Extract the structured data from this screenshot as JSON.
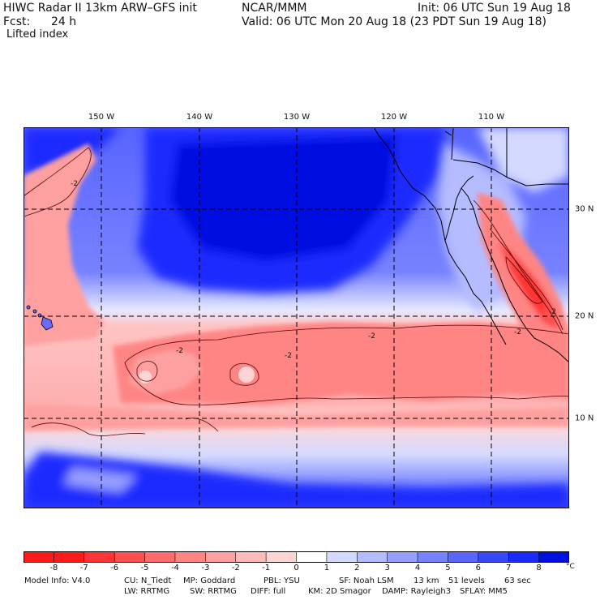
{
  "header": {
    "model_title": "HIWC Radar II 13km ARW–GFS init",
    "org": "NCAR/MMM",
    "init": "Init: 06 UTC Sun 19 Aug 18",
    "fcst_label": "Fcst:",
    "fcst_value": "24 h",
    "valid": "Valid: 06 UTC Mon 20 Aug 18 (23 PDT Sun 19 Aug 18)",
    "field_name": "Lifted index"
  },
  "longitude_labels": [
    "150 W",
    "140 W",
    "130 W",
    "120 W",
    "110 W"
  ],
  "latitude_labels": [
    "30 N",
    "20 N",
    "10 N"
  ],
  "contour_labels": [
    "-2",
    "-2",
    "-2",
    "-2",
    "-2",
    "-2"
  ],
  "colorbar": {
    "ticks": [
      "-8",
      "-7",
      "-6",
      "-5",
      "-4",
      "-3",
      "-2",
      "-1",
      "0",
      "1",
      "2",
      "3",
      "4",
      "5",
      "6",
      "7",
      "8"
    ],
    "unit": "°C",
    "colors": [
      "#ff1a1a",
      "#ff3434",
      "#ff4f4f",
      "#ff6a6a",
      "#ff8585",
      "#ffa0a0",
      "#ffbaba",
      "#ffd4d4",
      "#ffffff",
      "#d4d9ff",
      "#b5bcff",
      "#969fff",
      "#7782ff",
      "#5865ff",
      "#3948ff",
      "#1a2bff",
      "#0010e0"
    ]
  },
  "model_info": {
    "line1": [
      {
        "name": "info-model",
        "text": "Model Info: V4.0"
      },
      {
        "name": "info-cu",
        "text": "CU: N_Tiedt"
      },
      {
        "name": "info-mp",
        "text": "MP: Goddard"
      },
      {
        "name": "info-pbl",
        "text": "PBL: YSU"
      },
      {
        "name": "info-sf",
        "text": "SF: Noah LSM"
      },
      {
        "name": "info-res",
        "text": "13 km"
      },
      {
        "name": "info-levels",
        "text": "51 levels"
      },
      {
        "name": "info-dt",
        "text": "63 sec"
      }
    ],
    "line2": [
      {
        "name": "info-lw",
        "text": "LW: RRTMG"
      },
      {
        "name": "info-sw",
        "text": "SW: RRTMG"
      },
      {
        "name": "info-diff",
        "text": "DIFF: full"
      },
      {
        "name": "info-km",
        "text": "KM: 2D Smagor"
      },
      {
        "name": "info-damp",
        "text": "DAMP: Rayleigh3"
      },
      {
        "name": "info-sflay",
        "text": "SFLAY: MM5"
      }
    ]
  }
}
